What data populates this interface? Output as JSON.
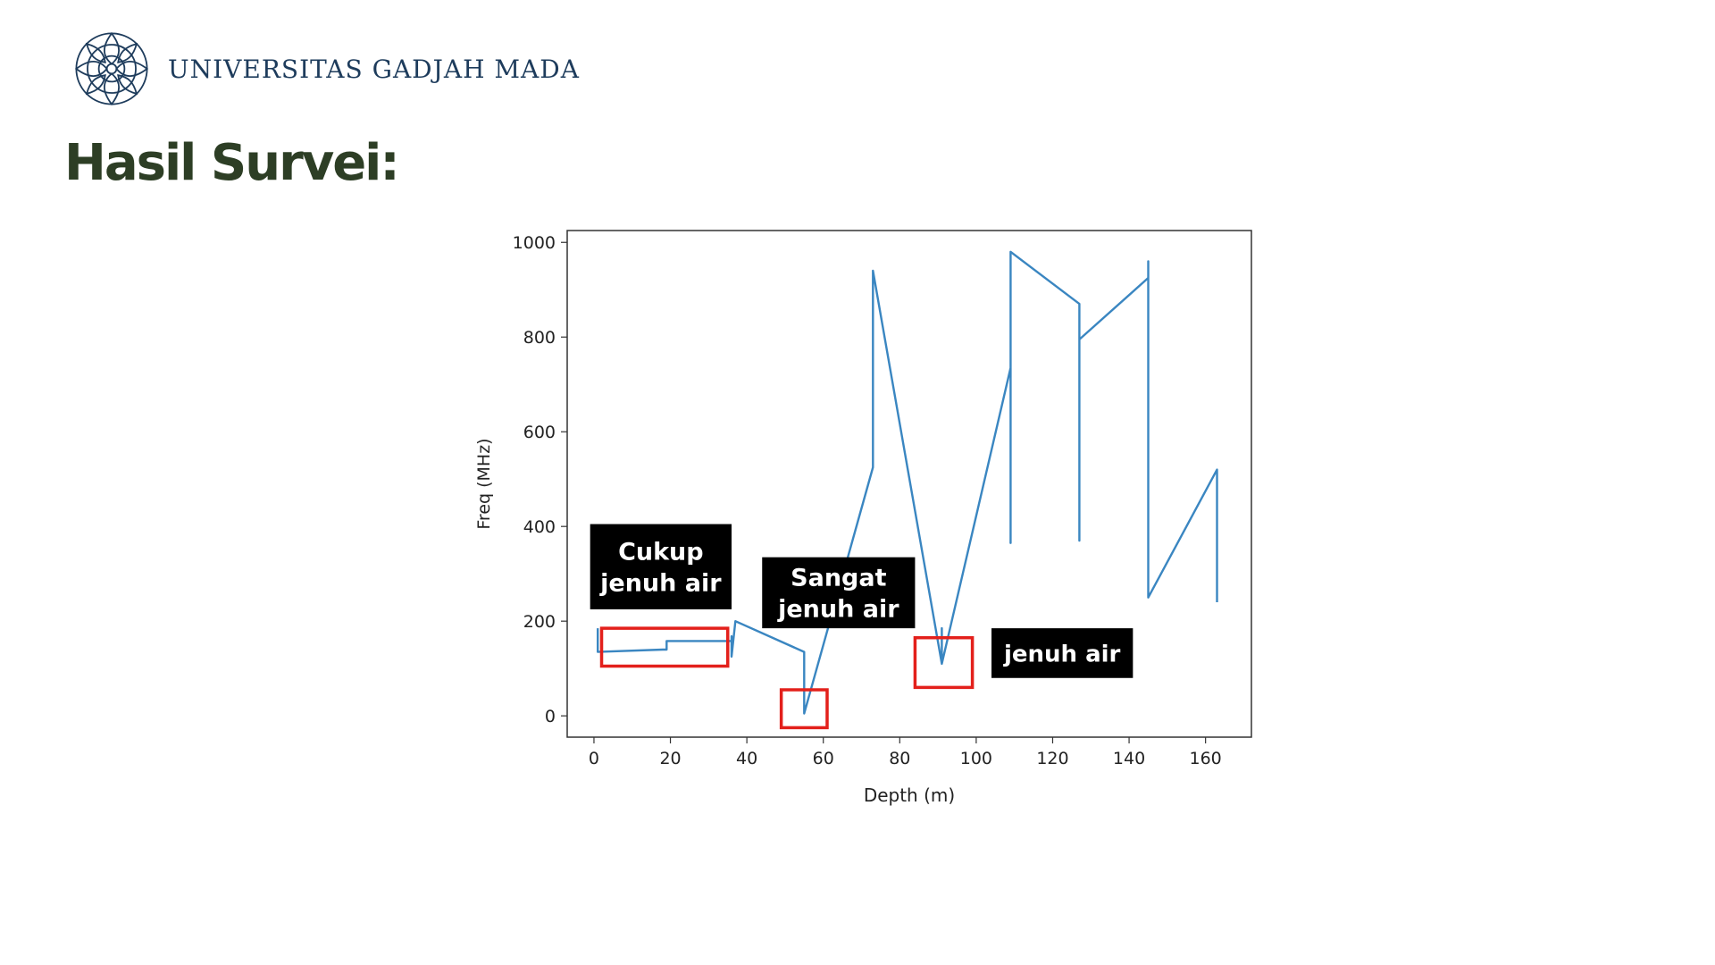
{
  "header": {
    "university": "UNIVERSITAS GADJAH MADA",
    "logo_icon": "ugm-seal-icon"
  },
  "slide": {
    "title": "Hasil Survei:"
  },
  "colors": {
    "title": "#2d3e25",
    "university": "#1e3c5c",
    "series": "#3a86c1",
    "highlight": "#e3201b",
    "annotation_bg": "#000000",
    "annotation_text": "#ffffff"
  },
  "chart_data": {
    "type": "line",
    "title": "",
    "xlabel": "Depth (m)",
    "ylabel": "Freq (MHz)",
    "xlim": [
      -7,
      172
    ],
    "ylim": [
      -45,
      1025
    ],
    "xticks": [
      0,
      20,
      40,
      60,
      80,
      100,
      120,
      140,
      160
    ],
    "yticks": [
      0,
      200,
      400,
      600,
      800,
      1000
    ],
    "grid": false,
    "legend": "none",
    "series": [
      {
        "x": [
          1,
          1,
          18,
          19,
          19,
          36,
          36,
          36,
          37,
          37,
          55,
          55,
          55,
          73,
          73,
          73,
          91,
          91,
          91,
          109,
          109,
          109,
          109,
          127,
          127,
          127,
          127,
          145,
          145,
          145,
          145,
          145,
          163,
          163
        ],
        "y": [
          185,
          135,
          140,
          140,
          158,
          158,
          168,
          125,
          200,
          200,
          135,
          5,
          5,
          525,
          940,
          940,
          110,
          185,
          110,
          735,
          365,
          980,
          980,
          870,
          370,
          795,
          795,
          925,
          960,
          925,
          250,
          250,
          520,
          240
        ]
      }
    ],
    "annotations": [
      {
        "label": "highlight-box-1",
        "x0": 2,
        "x1": 35,
        "y0": 105,
        "y1": 185
      },
      {
        "label": "highlight-box-2",
        "x0": 49,
        "x1": 61,
        "y0": -25,
        "y1": 55
      },
      {
        "label": "highlight-box-3",
        "x0": 84,
        "x1": 99,
        "y0": 60,
        "y1": 165
      }
    ],
    "text_boxes": [
      {
        "lines": [
          "Cukup",
          "jenuh air"
        ],
        "x0": -1,
        "x1": 36,
        "y0": 225,
        "y1": 405
      },
      {
        "lines": [
          "Sangat",
          "jenuh air"
        ],
        "x0": 44,
        "x1": 84,
        "y0": 185,
        "y1": 335
      },
      {
        "lines": [
          "jenuh air"
        ],
        "x0": 104,
        "x1": 141,
        "y0": 80,
        "y1": 185
      }
    ]
  }
}
